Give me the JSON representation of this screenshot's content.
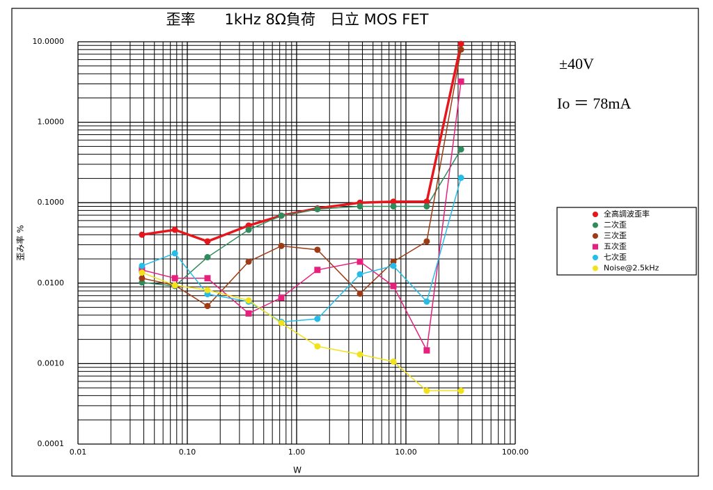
{
  "chart_data": {
    "type": "line",
    "title": "歪率　　1kHz 8Ω負荷　日立 MOS FET",
    "x_label": "W",
    "y_label": "歪み率 %",
    "annotations": [
      "±40V",
      "Io ＝ 78mA"
    ],
    "x_log": true,
    "y_log": true,
    "grid": true,
    "legend": "right",
    "xlim": [
      0.01,
      100
    ],
    "ylim": [
      0.0001,
      10
    ],
    "xticks": [
      0.01,
      {
        "value": 0.1,
        "label": "0.10"
      },
      {
        "value": 1,
        "label": "1.00"
      },
      {
        "value": 10,
        "label": "10.00"
      },
      {
        "value": 100,
        "label": "100.00"
      }
    ],
    "yticks": [
      {
        "value": 0.0001,
        "label": "0.0001"
      },
      {
        "value": 0.001,
        "label": "0.0010"
      },
      {
        "value": 0.01,
        "label": "0.0100"
      },
      {
        "value": 0.1,
        "label": "0.1000"
      },
      {
        "value": 1,
        "label": "1.0000"
      },
      {
        "value": 10,
        "label": "10.0000"
      }
    ],
    "x": [
      0.0385,
      0.077,
      0.153,
      0.364,
      0.725,
      1.55,
      3.8,
      7.68,
      15.5,
      31.9
    ],
    "series": [
      {
        "name": "全高調波歪率",
        "color": "#e5161c",
        "marker": "circle",
        "line_width": 3.5,
        "values": [
          0.04,
          0.046,
          0.033,
          0.052,
          0.069,
          0.085,
          0.1,
          0.103,
          0.103,
          9.4
        ]
      },
      {
        "name": "二次歪",
        "color": "#2f8a5c",
        "marker": "circle",
        "line_width": 1.5,
        "values": [
          0.0102,
          0.0092,
          0.021,
          0.046,
          0.069,
          0.083,
          0.09,
          0.09,
          0.09,
          0.46
        ]
      },
      {
        "name": "三次歪",
        "color": "#9c3b15",
        "marker": "circle",
        "line_width": 1.5,
        "values": [
          0.0115,
          0.0094,
          0.0052,
          0.0185,
          0.029,
          0.026,
          0.0074,
          0.0185,
          0.033,
          8.0
        ]
      },
      {
        "name": "五次歪",
        "color": "#e6217d",
        "marker": "square",
        "line_width": 1.5,
        "values": [
          0.0146,
          0.0115,
          0.0115,
          0.0042,
          0.0066,
          0.0146,
          0.0185,
          0.0092,
          0.00146,
          3.2
        ]
      },
      {
        "name": "七次歪",
        "color": "#25bde8",
        "marker": "circle",
        "line_width": 1.5,
        "values": [
          0.0164,
          0.0235,
          0.0073,
          0.0059,
          0.0033,
          0.0036,
          0.0129,
          0.0164,
          0.0059,
          0.204
        ]
      },
      {
        "name": "Noise@2.5kHz",
        "color": "#f2e21c",
        "marker": "circle",
        "line_width": 1.5,
        "values": [
          0.0135,
          0.0094,
          0.0082,
          0.0061,
          0.0032,
          0.00164,
          0.0013,
          0.00106,
          0.00046,
          0.00046
        ]
      }
    ]
  }
}
